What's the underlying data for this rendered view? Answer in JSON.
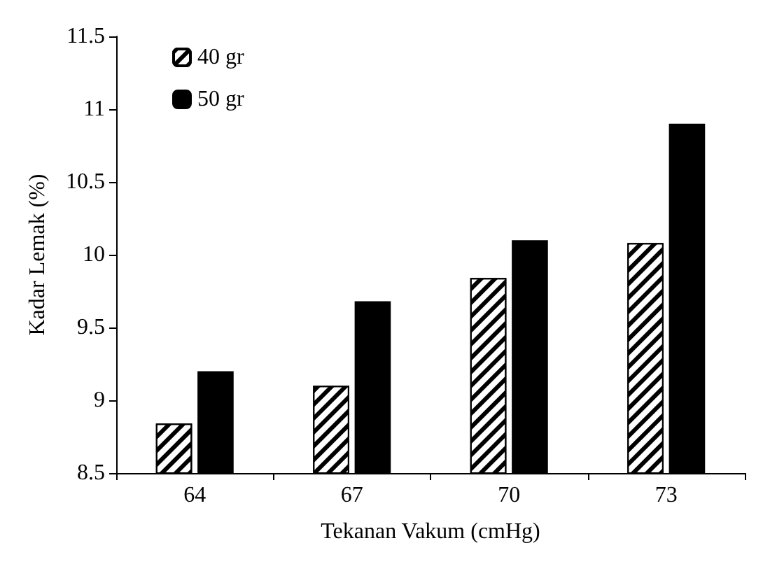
{
  "chart_data": {
    "type": "bar",
    "xlabel": "Tekanan Vakum (cmHg)",
    "ylabel": "Kadar Lemak (%)",
    "categories": [
      "64",
      "67",
      "70",
      "73"
    ],
    "series": [
      {
        "name": "40 gr",
        "color": "#ffffff",
        "values": [
          8.84,
          9.1,
          9.84,
          10.08
        ]
      },
      {
        "name": "50 gr",
        "color": "#000000",
        "values": [
          9.2,
          9.68,
          10.1,
          10.9
        ]
      }
    ],
    "ylim": [
      8.5,
      11.5
    ],
    "yticks": [
      8.5,
      9,
      9.5,
      10,
      10.5,
      11,
      11.5
    ],
    "grid": false,
    "legend": "top left"
  }
}
